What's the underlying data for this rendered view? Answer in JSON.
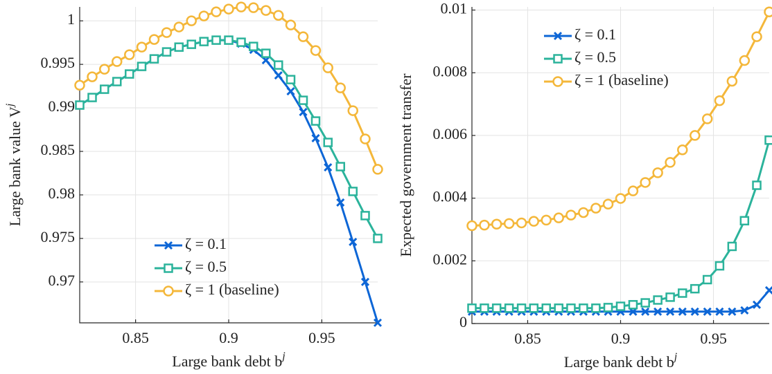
{
  "chart_data": [
    {
      "type": "line",
      "xlabel": "Large bank debt b",
      "xlabel_sup": "j",
      "ylabel": "Large bank value V",
      "ylabel_sup": "j",
      "x": [
        0.82,
        0.8267,
        0.8333,
        0.84,
        0.8467,
        0.8533,
        0.86,
        0.8667,
        0.8733,
        0.88,
        0.8867,
        0.8933,
        0.9,
        0.9067,
        0.9133,
        0.92,
        0.9267,
        0.9333,
        0.94,
        0.9467,
        0.9533,
        0.96,
        0.9667,
        0.9733,
        0.98
      ],
      "xlim": [
        0.82,
        0.98
      ],
      "xticks": [
        0.85,
        0.9,
        0.95
      ],
      "ylim": [
        0.9653,
        1.0016
      ],
      "yticks": [
        0.97,
        0.975,
        0.98,
        0.985,
        0.99,
        0.995,
        1
      ],
      "grid": true,
      "legend": "lower-center",
      "series": [
        {
          "name": "ζ = 0.1",
          "color": "#0d66d6",
          "marker": "x",
          "values": [
            0.99032,
            0.99119,
            0.99214,
            0.99302,
            0.99389,
            0.99476,
            0.99563,
            0.99643,
            0.99698,
            0.9973,
            0.99762,
            0.99778,
            0.99778,
            0.99738,
            0.99667,
            0.99548,
            0.99373,
            0.9919,
            0.98952,
            0.98651,
            0.98317,
            0.97913,
            0.9746,
            0.97,
            0.96531
          ]
        },
        {
          "name": "ζ = 0.5",
          "color": "#2bb39b",
          "marker": "square",
          "values": [
            0.99032,
            0.99119,
            0.99214,
            0.99302,
            0.99389,
            0.99476,
            0.99563,
            0.99643,
            0.99698,
            0.9973,
            0.99762,
            0.99778,
            0.99778,
            0.99754,
            0.99706,
            0.99627,
            0.99492,
            0.99325,
            0.99087,
            0.98849,
            0.98603,
            0.98325,
            0.9804,
            0.97762,
            0.975
          ]
        },
        {
          "name": "ζ = 1 (baseline)",
          "color": "#f4b73a",
          "marker": "circle",
          "values": [
            0.9926,
            0.99357,
            0.99444,
            0.99532,
            0.99611,
            0.99698,
            0.99786,
            0.99865,
            0.99929,
            1.0,
            1.00056,
            1.00103,
            1.00135,
            1.00159,
            1.00151,
            1.00119,
            1.00063,
            0.99952,
            0.99817,
            0.99659,
            0.9946,
            0.9923,
            0.98968,
            0.98643,
            0.98294
          ]
        }
      ]
    },
    {
      "type": "line",
      "xlabel": "Large bank debt b",
      "xlabel_sup": "j",
      "ylabel": "Expected government transfer",
      "x": [
        0.82,
        0.8267,
        0.8333,
        0.84,
        0.8467,
        0.8533,
        0.86,
        0.8667,
        0.8733,
        0.88,
        0.8867,
        0.8933,
        0.9,
        0.9067,
        0.9133,
        0.92,
        0.9267,
        0.9333,
        0.94,
        0.9467,
        0.9533,
        0.96,
        0.9667,
        0.9733,
        0.98
      ],
      "xlim": [
        0.82,
        0.98
      ],
      "xticks": [
        0.85,
        0.9,
        0.95
      ],
      "ylim": [
        0,
        0.0101
      ],
      "yticks": [
        0,
        0.002,
        0.004,
        0.006,
        0.008,
        0.01
      ],
      "grid": true,
      "legend": "upper-left",
      "series": [
        {
          "name": "ζ = 0.1",
          "color": "#0d66d6",
          "marker": "x",
          "values": [
            0.00038,
            0.00038,
            0.00038,
            0.00038,
            0.00038,
            0.00038,
            0.00038,
            0.00038,
            0.00038,
            0.00038,
            0.00038,
            0.00038,
            0.00038,
            0.00038,
            0.00038,
            0.00038,
            0.00038,
            0.00038,
            0.00038,
            0.00038,
            0.00038,
            0.00038,
            0.00042,
            0.0006,
            0.00106
          ]
        },
        {
          "name": "ζ = 0.5",
          "color": "#2bb39b",
          "marker": "square",
          "values": [
            0.00049,
            0.00049,
            0.00049,
            0.00049,
            0.00049,
            0.00049,
            0.00049,
            0.00049,
            0.00049,
            0.00049,
            0.00049,
            0.00051,
            0.00055,
            0.0006,
            0.00066,
            0.00075,
            0.00084,
            0.00097,
            0.00111,
            0.0014,
            0.00184,
            0.00246,
            0.00328,
            0.00441,
            0.00585
          ]
        },
        {
          "name": "ζ = 1 (baseline)",
          "color": "#f4b73a",
          "marker": "circle",
          "values": [
            0.00312,
            0.00314,
            0.00317,
            0.00319,
            0.00321,
            0.00326,
            0.0033,
            0.00337,
            0.00346,
            0.00354,
            0.00368,
            0.00381,
            0.00399,
            0.00423,
            0.0045,
            0.00481,
            0.00514,
            0.00554,
            0.006,
            0.00653,
            0.00711,
            0.00773,
            0.00839,
            0.00915,
            0.00994
          ]
        }
      ]
    }
  ]
}
